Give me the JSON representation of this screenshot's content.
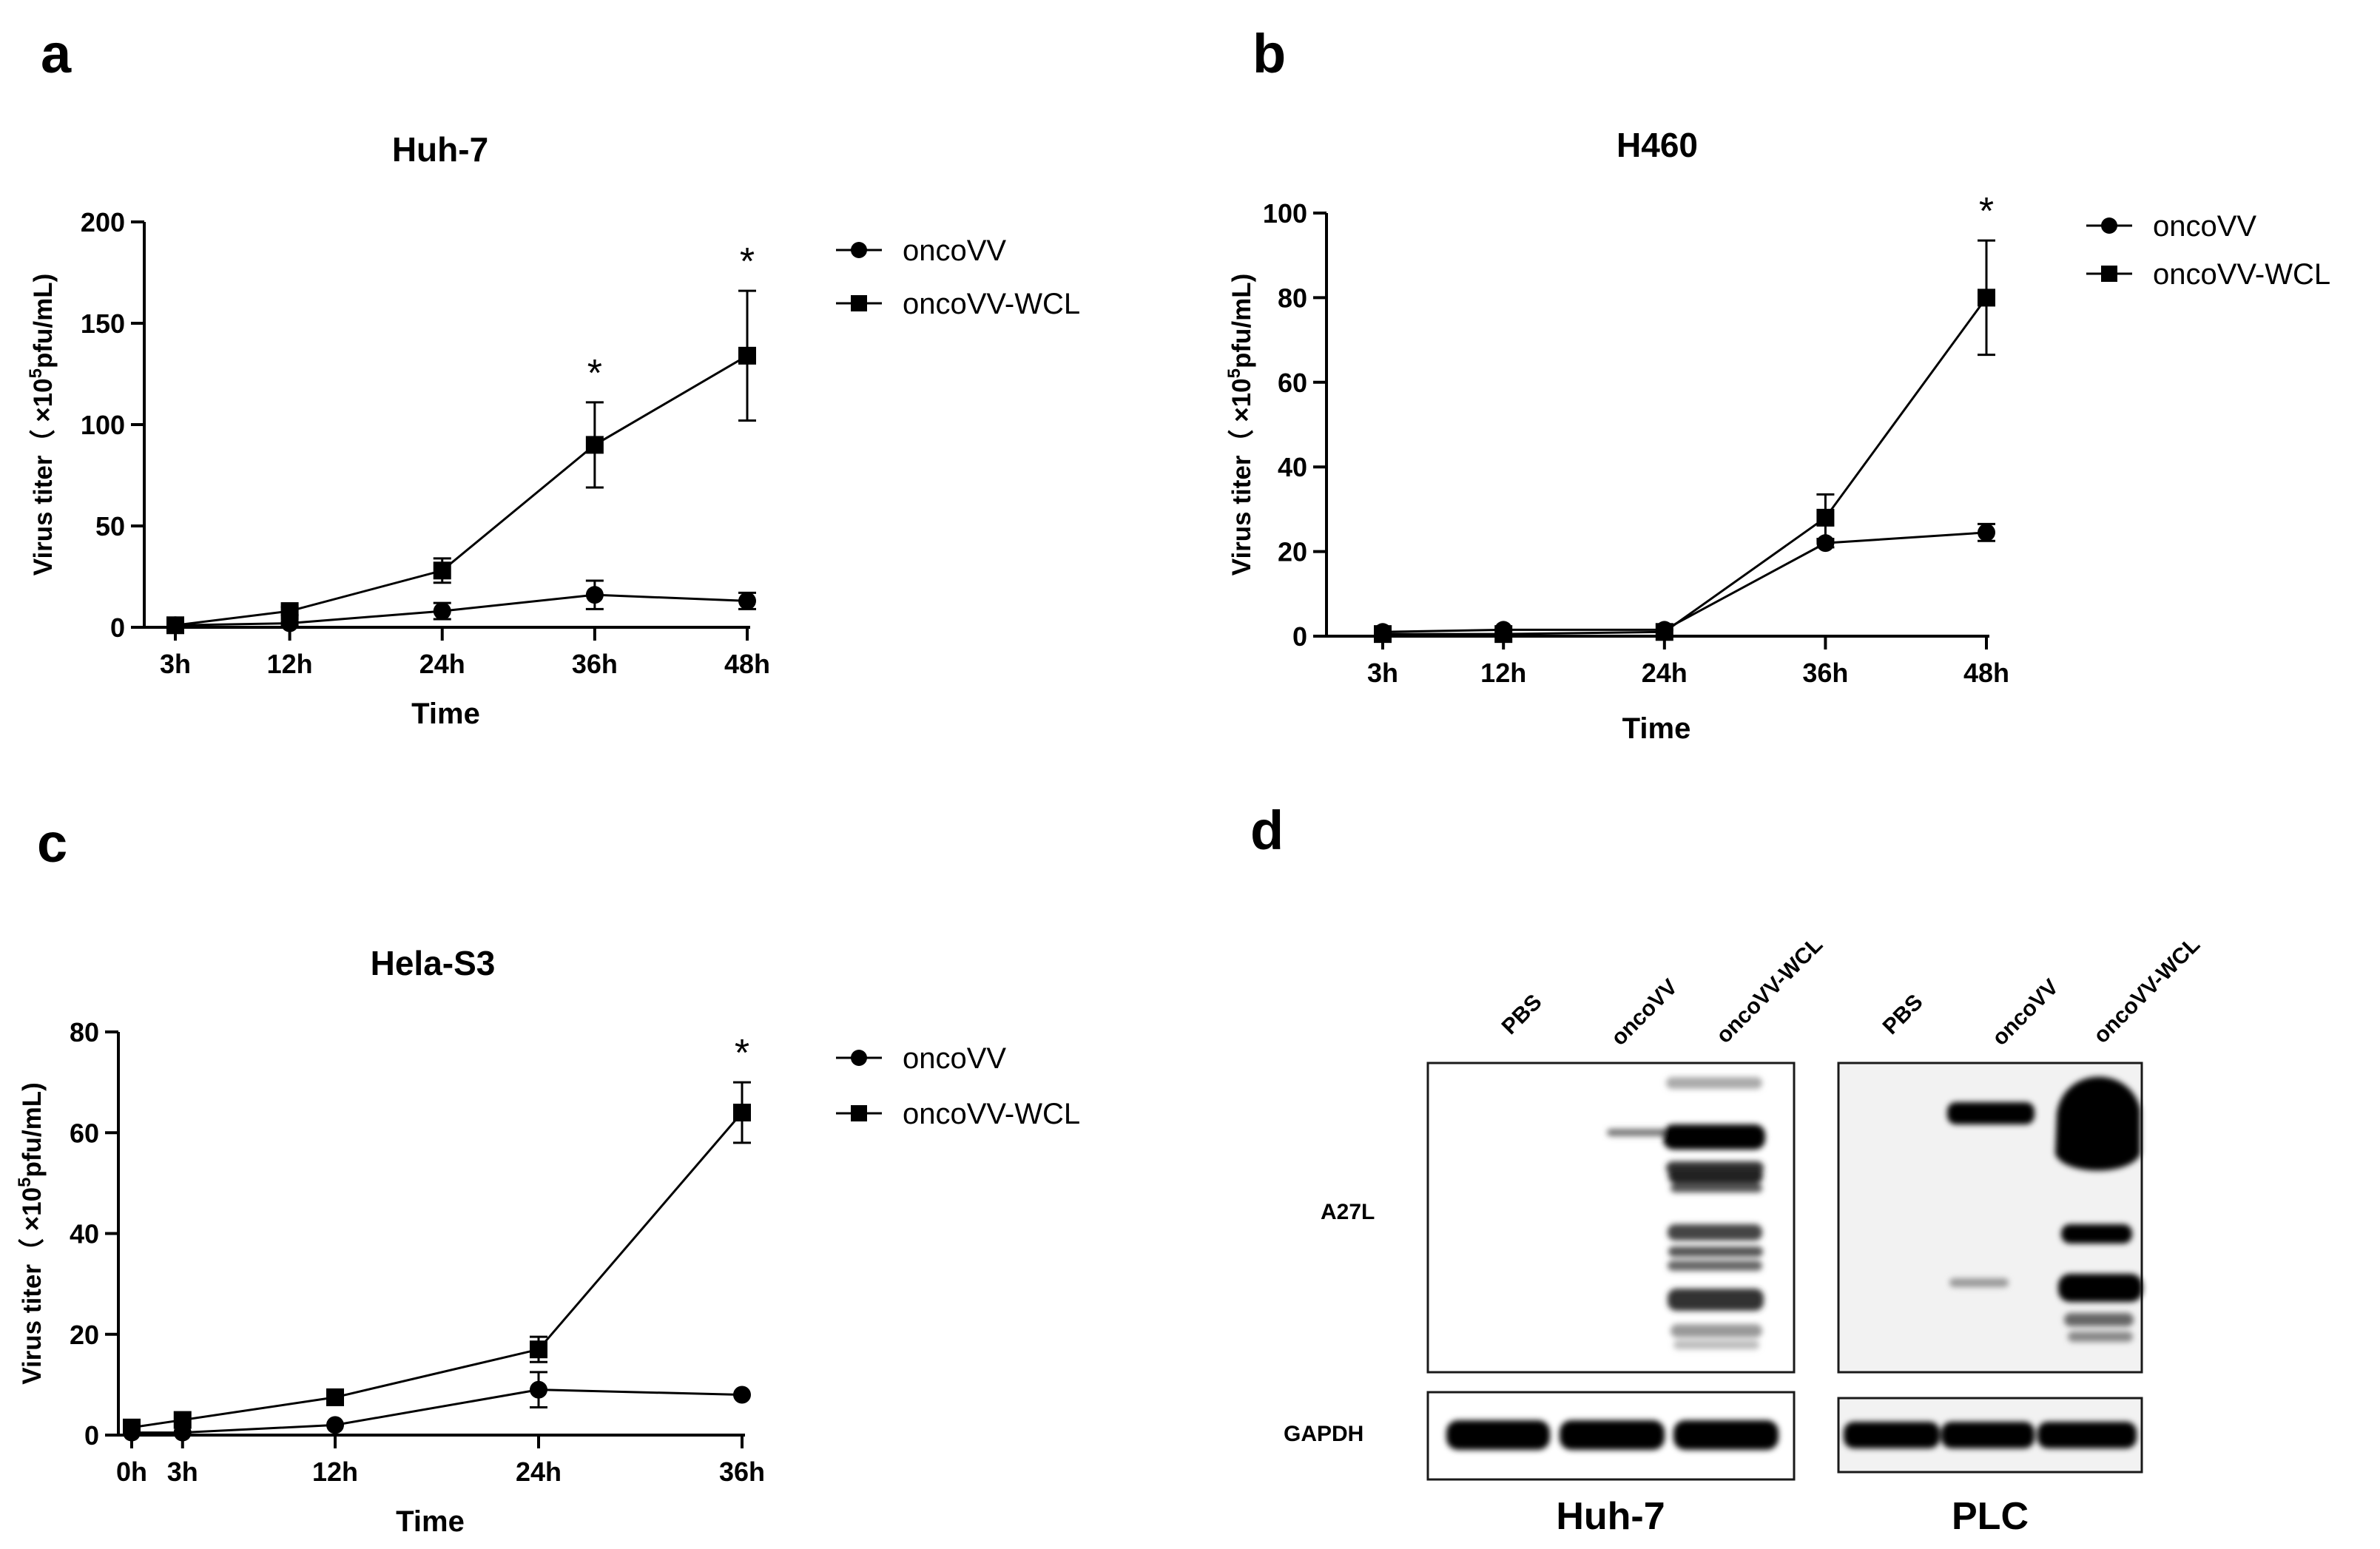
{
  "panels": {
    "a": {
      "label": "a"
    },
    "b": {
      "label": "b"
    },
    "c": {
      "label": "c"
    },
    "d": {
      "label": "d"
    }
  },
  "chart_data": [
    {
      "panel": "a",
      "type": "line",
      "title": "Huh-7",
      "xlabel": "Time",
      "ylabel": "Virus titer (×10⁵pfu/mL)",
      "ylabel_parts": {
        "pre": "Virus titer（ ×10",
        "sup": "5",
        "post": "pfu/mL)"
      },
      "categories": [
        "3h",
        "12h",
        "24h",
        "36h",
        "48h"
      ],
      "x_hours": [
        3,
        12,
        24,
        36,
        48
      ],
      "ylim": [
        0,
        200
      ],
      "yticks": [
        0,
        50,
        100,
        150,
        200
      ],
      "series": [
        {
          "name": "oncoVV",
          "marker": "circle",
          "values": [
            1,
            2,
            8,
            16,
            13
          ],
          "errors": [
            0.5,
            1,
            4,
            7,
            4
          ]
        },
        {
          "name": "oncoVV-WCL",
          "marker": "square",
          "values": [
            1,
            8,
            28,
            90,
            134
          ],
          "errors": [
            0.5,
            2,
            6,
            21,
            32
          ]
        }
      ],
      "significance": [
        {
          "x": "36h",
          "label": "*"
        },
        {
          "x": "48h",
          "label": "*"
        }
      ],
      "legend": "right"
    },
    {
      "panel": "b",
      "type": "line",
      "title": "H460",
      "xlabel": "Time",
      "ylabel": "Virus titer (×10⁵pfu/mL)",
      "ylabel_parts": {
        "pre": "Virus titer（ ×10",
        "sup": "5",
        "post": "pfu/mL)"
      },
      "categories": [
        "3h",
        "12h",
        "24h",
        "36h",
        "48h"
      ],
      "x_hours": [
        3,
        12,
        24,
        36,
        48
      ],
      "ylim": [
        0,
        100
      ],
      "yticks": [
        0,
        20,
        40,
        60,
        80,
        100
      ],
      "series": [
        {
          "name": "oncoVV",
          "marker": "circle",
          "values": [
            1,
            1.5,
            1.5,
            22,
            24.5
          ],
          "errors": [
            0.5,
            0.5,
            0.5,
            1,
            2
          ]
        },
        {
          "name": "oncoVV-WCL",
          "marker": "square",
          "values": [
            0.5,
            0.5,
            1,
            28,
            80
          ],
          "errors": [
            0.3,
            0.3,
            0.3,
            5.5,
            13.5
          ]
        }
      ],
      "significance": [
        {
          "x": "48h",
          "label": "*"
        }
      ],
      "legend": "right"
    },
    {
      "panel": "c",
      "type": "line",
      "title": "Hela-S3",
      "xlabel": "Time",
      "ylabel": "Virus titer (×10⁵pfu/mL)",
      "ylabel_parts": {
        "pre": "Virus titer（ ×10",
        "sup": "5",
        "post": "pfu/mL)"
      },
      "categories": [
        "0h",
        "3h",
        "12h",
        "24h",
        "36h"
      ],
      "x_hours": [
        0,
        3,
        12,
        24,
        36
      ],
      "ylim": [
        0,
        80
      ],
      "yticks": [
        0,
        20,
        40,
        60,
        80
      ],
      "series": [
        {
          "name": "oncoVV",
          "marker": "circle",
          "values": [
            0.5,
            0.5,
            2,
            9,
            8
          ],
          "errors": [
            0.3,
            0.3,
            0.5,
            3.5,
            0.5
          ]
        },
        {
          "name": "oncoVV-WCL",
          "marker": "square",
          "values": [
            1.5,
            3,
            7.5,
            17,
            64
          ],
          "errors": [
            0.5,
            0.5,
            0.5,
            2.5,
            6
          ]
        }
      ],
      "significance": [
        {
          "x": "36h",
          "label": "*"
        }
      ],
      "legend": "right"
    }
  ],
  "blot": {
    "lanes": [
      "PBS",
      "oncoVV",
      "oncoVV-WCL"
    ],
    "rows": [
      "A27L",
      "GAPDH"
    ],
    "cell_lines": [
      "Huh-7",
      "PLC"
    ]
  }
}
